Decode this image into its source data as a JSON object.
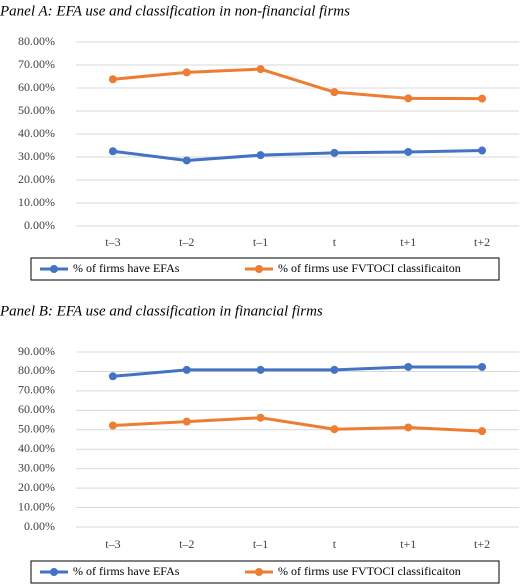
{
  "chart_data": [
    {
      "type": "line",
      "title": "Panel A: EFA use and classification in non-financial firms",
      "categories": [
        "t–3",
        "t–2",
        "t–1",
        "t",
        "t+1",
        "t+2"
      ],
      "series": [
        {
          "name": "% of firms have EFAs",
          "color": "#4472c4",
          "values": [
            32.5,
            28.5,
            30.8,
            31.8,
            32.2,
            32.8
          ]
        },
        {
          "name": "% of firms use FVTOCI classificaiton",
          "color": "#ed7d31",
          "values": [
            63.8,
            66.8,
            68.2,
            58.2,
            55.5,
            55.4
          ]
        }
      ],
      "ylim": [
        0,
        80
      ],
      "yticks": [
        {
          "value": 0,
          "label": "0.00%"
        },
        {
          "value": 10,
          "label": "10.00%"
        },
        {
          "value": 20,
          "label": "20.00%"
        },
        {
          "value": 30,
          "label": "30.00%"
        },
        {
          "value": 40,
          "label": "40.00%"
        },
        {
          "value": 50,
          "label": "50.00%"
        },
        {
          "value": 60,
          "label": "60.00%"
        },
        {
          "value": 70,
          "label": "70.00%"
        },
        {
          "value": 80,
          "label": "80.00%"
        }
      ],
      "grid": true,
      "legend": "bottom"
    },
    {
      "type": "line",
      "title": "Panel B: EFA use and classification in financial firms",
      "categories": [
        "t–3",
        "t–2",
        "t–1",
        "t",
        "t+1",
        "t+2"
      ],
      "series": [
        {
          "name": "% of firms have EFAs",
          "color": "#4472c4",
          "values": [
            77.5,
            80.8,
            80.8,
            80.8,
            82.3,
            82.3
          ]
        },
        {
          "name": "% of firms use FVTOCI classificaiton",
          "color": "#ed7d31",
          "values": [
            52.2,
            54.2,
            56.2,
            50.3,
            51.2,
            49.3
          ]
        }
      ],
      "ylim": [
        0,
        90
      ],
      "yticks": [
        {
          "value": 0,
          "label": "0.00%"
        },
        {
          "value": 10,
          "label": "10.00%"
        },
        {
          "value": 20,
          "label": "20.00%"
        },
        {
          "value": 30,
          "label": "30.00%"
        },
        {
          "value": 40,
          "label": "40.00%"
        },
        {
          "value": 50,
          "label": "50.00%"
        },
        {
          "value": 60,
          "label": "60.00%"
        },
        {
          "value": 70,
          "label": "70.00%"
        },
        {
          "value": 80,
          "label": "80.00%"
        },
        {
          "value": 90,
          "label": "90.00%"
        }
      ],
      "grid": true,
      "legend": "bottom"
    }
  ]
}
